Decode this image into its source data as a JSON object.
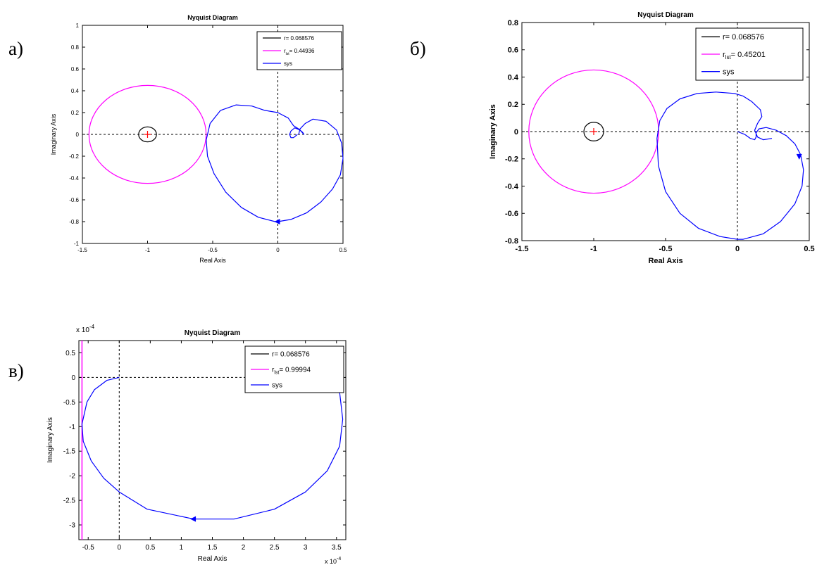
{
  "panel_labels": [
    "а)",
    "б)",
    "в)"
  ],
  "chart_data": [
    {
      "type": "line",
      "title": "Nyquist Diagram",
      "xlabel": "Real Axis",
      "ylabel": "Imaginary Axis",
      "xlim": [
        -1.5,
        0.5
      ],
      "ylim": [
        -1,
        1
      ],
      "xticks": [
        -1.5,
        -1,
        -0.5,
        0,
        0.5
      ],
      "xtick_labels": [
        "-1.5",
        "-1",
        "-0.5",
        "0",
        "0.5"
      ],
      "yticks": [
        -1,
        -0.8,
        -0.6,
        -0.4,
        -0.2,
        0,
        0.2,
        0.4,
        0.6,
        0.8,
        1
      ],
      "ytick_labels": [
        "-1",
        "-0.8",
        "-0.6",
        "-0.4",
        "-0.2",
        "0",
        "0.2",
        "0.4",
        "0.6",
        "0.8",
        "1"
      ],
      "grid": false,
      "legend_position": "top-right",
      "legend": [
        {
          "label": "r= 0.068576",
          "color": "#000000"
        },
        {
          "label": "r",
          "sub": "lst",
          "suffix": "= 0.44936",
          "color": "#ff00ff"
        },
        {
          "label": "sys",
          "color": "#0000ff"
        }
      ],
      "critical_point": [
        -1,
        0
      ],
      "circles": [
        {
          "name": "r",
          "cx": -1,
          "cy": 0,
          "r": 0.068576,
          "color": "#000000"
        },
        {
          "name": "r_lst",
          "cx": -1,
          "cy": 0,
          "r": 0.44936,
          "color": "#ff00ff"
        }
      ],
      "series": [
        {
          "name": "sys",
          "color": "#0000ff",
          "x": [
            0.15,
            0.12,
            0.1,
            0.09,
            0.1,
            0.13,
            0.17,
            0.2,
            0.19,
            0.16,
            0.12,
            0.08,
            0.0,
            -0.1,
            -0.2,
            -0.32,
            -0.44,
            -0.52,
            -0.55,
            -0.54,
            -0.49,
            -0.4,
            -0.28,
            -0.15,
            -0.02,
            0.0,
            0.1,
            0.22,
            0.33,
            0.42,
            0.48,
            0.5,
            0.49,
            0.45,
            0.37,
            0.27,
            0.21,
            0.17,
            0.16
          ],
          "y": [
            0.0,
            -0.03,
            -0.03,
            0.0,
            0.03,
            0.06,
            0.04,
            0.0,
            0.02,
            0.05,
            0.08,
            0.15,
            0.2,
            0.22,
            0.26,
            0.27,
            0.22,
            0.1,
            -0.05,
            -0.2,
            -0.36,
            -0.53,
            -0.67,
            -0.76,
            -0.8,
            -0.8,
            -0.78,
            -0.72,
            -0.62,
            -0.5,
            -0.37,
            -0.22,
            -0.08,
            0.04,
            0.12,
            0.14,
            0.1,
            0.05,
            0.0
          ]
        }
      ],
      "arrow": {
        "x": 0.0,
        "y": -0.8,
        "dir": "left"
      }
    },
    {
      "type": "line",
      "title": "Nyquist Diagram",
      "xlabel": "Real Axis",
      "ylabel": "Imaginary Axis",
      "xlim": [
        -1.5,
        0.5
      ],
      "ylim": [
        -0.8,
        0.8
      ],
      "xticks": [
        -1.5,
        -1,
        -0.5,
        0,
        0.5
      ],
      "xtick_labels": [
        "-1.5",
        "-1",
        "-0.5",
        "0",
        "0.5"
      ],
      "yticks": [
        -0.8,
        -0.6,
        -0.4,
        -0.2,
        0,
        0.2,
        0.4,
        0.6,
        0.8
      ],
      "ytick_labels": [
        "-0.8",
        "-0.6",
        "-0.4",
        "-0.2",
        "0",
        "0.2",
        "0.4",
        "0.6",
        "0.8"
      ],
      "grid": false,
      "legend_position": "top-right",
      "legend": [
        {
          "label": "r= 0.068576",
          "color": "#000000"
        },
        {
          "label": "r",
          "sub": "lst",
          "suffix": "= 0.45201",
          "color": "#ff00ff"
        },
        {
          "label": "sys",
          "color": "#0000ff"
        }
      ],
      "critical_point": [
        -1,
        0
      ],
      "circles": [
        {
          "name": "r",
          "cx": -1,
          "cy": 0,
          "r": 0.068576,
          "color": "#000000"
        },
        {
          "name": "r_lst",
          "cx": -1,
          "cy": 0,
          "r": 0.45201,
          "color": "#ff00ff"
        }
      ],
      "series": [
        {
          "name": "sys",
          "color": "#0000ff",
          "x": [
            0.0,
            0.05,
            0.09,
            0.12,
            0.13,
            0.13,
            0.15,
            0.2,
            0.27,
            0.34,
            0.4,
            0.44,
            0.46,
            0.45,
            0.4,
            0.3,
            0.18,
            0.04,
            0.0,
            -0.12,
            -0.27,
            -0.4,
            -0.5,
            -0.55,
            -0.56,
            -0.54,
            -0.49,
            -0.4,
            -0.28,
            -0.15,
            -0.02,
            0.04,
            0.1,
            0.16,
            0.17,
            0.14,
            0.12,
            0.14,
            0.18,
            0.24
          ],
          "y": [
            0.0,
            -0.02,
            -0.05,
            -0.06,
            -0.04,
            -0.01,
            0.02,
            0.03,
            0.01,
            -0.03,
            -0.09,
            -0.17,
            -0.28,
            -0.4,
            -0.53,
            -0.66,
            -0.75,
            -0.79,
            -0.79,
            -0.77,
            -0.71,
            -0.6,
            -0.44,
            -0.25,
            -0.05,
            0.08,
            0.17,
            0.24,
            0.28,
            0.29,
            0.28,
            0.26,
            0.22,
            0.16,
            0.11,
            0.06,
            0.01,
            -0.04,
            -0.06,
            -0.05
          ]
        }
      ],
      "arrow": {
        "x": 0.43,
        "y": -0.18,
        "dir": "down"
      }
    },
    {
      "type": "line",
      "title": "Nyquist Diagram",
      "xlabel": "Real Axis",
      "ylabel": "Imaginary Axis",
      "xlim": [
        -0.65,
        3.65
      ],
      "ylim": [
        -3.3,
        0.75
      ],
      "x_exponent": "x 10",
      "x_exponent_power": "-4",
      "y_exponent": "x 10",
      "y_exponent_power": "-4",
      "xticks": [
        -0.5,
        0,
        0.5,
        1,
        1.5,
        2,
        2.5,
        3,
        3.5
      ],
      "xtick_labels": [
        "-0.5",
        "0",
        "0.5",
        "1",
        "1.5",
        "2",
        "2.5",
        "3",
        "3.5"
      ],
      "yticks": [
        -3,
        -2.5,
        -2,
        -1.5,
        -1,
        -0.5,
        0,
        0.5
      ],
      "ytick_labels": [
        "-3",
        "-2.5",
        "-2",
        "-1.5",
        "-1",
        "-0.5",
        "0",
        "0.5"
      ],
      "grid": false,
      "legend_position": "top-right",
      "legend": [
        {
          "label": "r= 0.068576",
          "color": "#000000"
        },
        {
          "label": "r",
          "sub": "lst",
          "suffix": "= 0.99994",
          "color": "#ff00ff"
        },
        {
          "label": "sys",
          "color": "#0000ff"
        }
      ],
      "vertical_line": {
        "x": -0.6,
        "color": "#ff00ff"
      },
      "series": [
        {
          "name": "sys",
          "color": "#0000ff",
          "x": [
            0.0,
            -0.2,
            -0.4,
            -0.52,
            -0.6,
            -0.58,
            -0.45,
            -0.25,
            0.0,
            0.45,
            1.2,
            1.85,
            2.5,
            3.0,
            3.35,
            3.55,
            3.6,
            3.55,
            3.42
          ],
          "y": [
            0.0,
            -0.06,
            -0.25,
            -0.5,
            -0.95,
            -1.3,
            -1.7,
            -2.05,
            -2.33,
            -2.68,
            -2.88,
            -2.88,
            -2.68,
            -2.33,
            -1.9,
            -1.4,
            -0.85,
            -0.3,
            0.1
          ]
        }
      ],
      "arrow": {
        "x": 1.2,
        "y": -2.88,
        "dir": "left"
      }
    }
  ]
}
